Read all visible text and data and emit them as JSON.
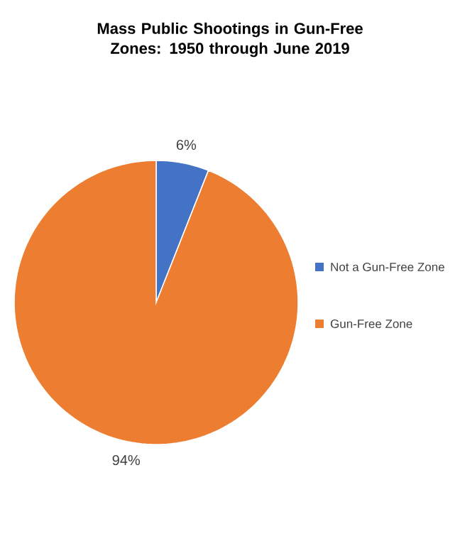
{
  "chart_data": {
    "type": "pie",
    "title": "Mass Public Shootings in Gun-Free Zones: 1950 through June 2019",
    "categories": [
      "Not a Gun-Free Zone",
      "Gun-Free Zone"
    ],
    "values": [
      6,
      94
    ],
    "value_labels": [
      "6%",
      "94%"
    ],
    "colors": [
      "#4472c4",
      "#ed7d31"
    ],
    "legend": "right"
  }
}
